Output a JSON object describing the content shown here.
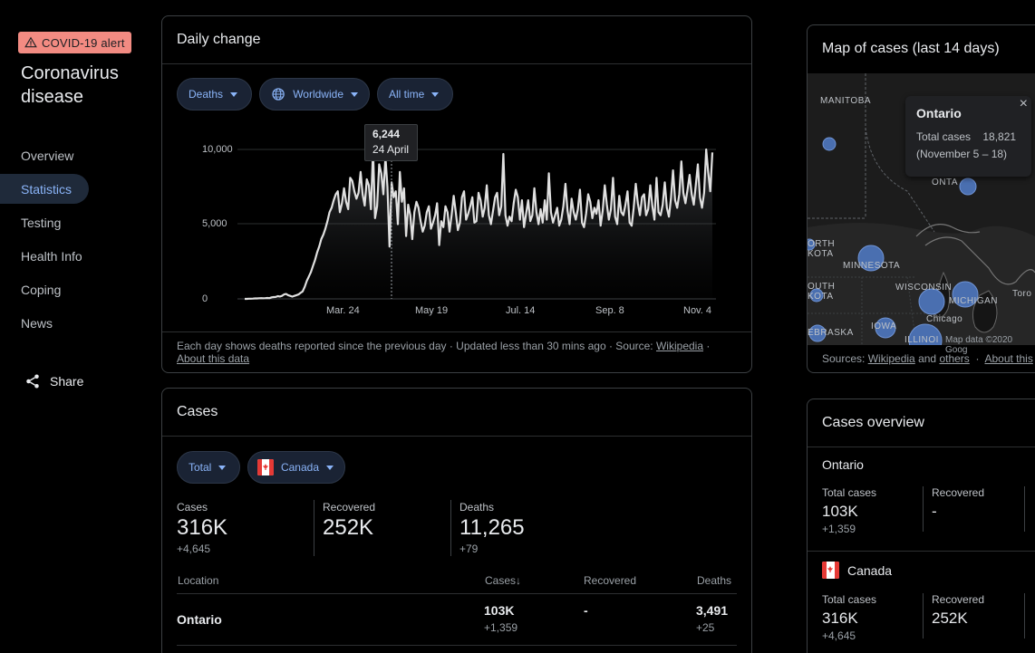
{
  "sidebar": {
    "alert": "COVID-19 alert",
    "title": "Coronavirus disease",
    "nav": [
      "Overview",
      "Statistics",
      "Testing",
      "Health Info",
      "Coping",
      "News"
    ],
    "active": "Statistics",
    "share": "Share"
  },
  "daily_change": {
    "title": "Daily change",
    "filters": {
      "metric": "Deaths",
      "region": "Worldwide",
      "range": "All time"
    },
    "tooltip": {
      "value": "6,244",
      "date": "24 April"
    },
    "footnote": "Each day shows deaths reported since the previous day · Updated less than 30 mins ago · Source:",
    "source_link": "Wikipedia",
    "about_link": "About this data",
    "chart_data": {
      "type": "area",
      "y_ticks": [
        "10,000",
        "5,000",
        "0"
      ],
      "x_ticks": [
        "Mar. 24",
        "May 19",
        "Jul. 14",
        "Sep. 8",
        "Nov. 4"
      ],
      "ylim": [
        0,
        10000
      ],
      "series": [
        {
          "values": [
            0,
            0,
            10,
            15,
            20,
            30,
            30,
            40,
            50,
            40,
            50,
            60,
            50,
            100,
            120,
            130,
            180,
            160,
            200,
            300,
            330,
            250,
            200,
            150,
            200,
            250,
            300,
            400,
            500,
            800,
            1200,
            1500,
            1800,
            2200,
            2600,
            3100,
            3500,
            4000,
            4300,
            4700,
            5200,
            5800,
            6100,
            6600,
            7000,
            7200,
            5800,
            6400,
            7400,
            6500,
            6000,
            8100,
            7900,
            7200,
            6700,
            7100,
            8500,
            7000,
            6244,
            8000,
            7600,
            6000,
            10000,
            5400,
            6200,
            9000,
            8400,
            7000,
            9500,
            7500,
            3500,
            7800,
            6800,
            7200,
            5000,
            8500,
            6500,
            7400,
            4200,
            6300,
            5600,
            4000,
            5800,
            6500,
            6100,
            5200,
            4500,
            4900,
            5800,
            6200,
            4700,
            5100,
            5600,
            6400,
            3600,
            5200,
            4800,
            6200,
            5800,
            4500,
            5600,
            6900,
            5800,
            4600,
            5100,
            6800,
            7200,
            5300,
            5700,
            6200,
            6800,
            5100,
            5200,
            7100,
            6600,
            5500,
            6100,
            7600,
            5600,
            5000,
            5900,
            6800,
            7100,
            5600,
            6200,
            9700,
            5600,
            4900,
            5500,
            5200,
            6400,
            7300,
            6800,
            5300,
            6600,
            4800,
            5700,
            6600,
            5200,
            5600,
            7400,
            5800,
            5000,
            6000,
            5100,
            6600,
            5300,
            8400,
            5800,
            5100,
            5600,
            6100,
            4900,
            5300,
            6200,
            7700,
            5900,
            5000,
            6700,
            5800,
            5300,
            6000,
            7300,
            5100,
            4800,
            5700,
            7000,
            6500,
            5400,
            6100,
            5700,
            6600,
            4900,
            5900,
            7600,
            6300,
            5300,
            6000,
            8100,
            5500,
            5000,
            6900,
            5800,
            5600,
            6300,
            7200,
            5100,
            4900,
            6100,
            7700,
            6400,
            5600,
            6800,
            7000,
            5600,
            6000,
            7600,
            6200,
            5300,
            8100,
            5800,
            5600,
            6300,
            7800,
            6100,
            5500,
            6700,
            8600,
            6600,
            6100,
            7000,
            9200,
            7100,
            6400,
            7300,
            8300,
            7000,
            6300,
            7600,
            9000,
            6800,
            6100,
            7100,
            10000,
            8500,
            7200,
            9800
          ]
        }
      ]
    }
  },
  "cases": {
    "title": "Cases",
    "filters": {
      "metric": "Total",
      "region": "Canada"
    },
    "stats": [
      {
        "label": "Cases",
        "value": "316K",
        "delta": "+4,645"
      },
      {
        "label": "Recovered",
        "value": "252K",
        "delta": ""
      },
      {
        "label": "Deaths",
        "value": "11,265",
        "delta": "+79"
      }
    ],
    "table": {
      "headers": [
        "Location",
        "Cases",
        "Recovered",
        "Deaths"
      ],
      "rows": [
        {
          "location": "Ontario",
          "cases": "103K",
          "cases_delta": "+1,359",
          "recovered": "-",
          "deaths": "3,491",
          "deaths_delta": "+25"
        }
      ]
    }
  },
  "map": {
    "title": "Map of cases (last 14 days)",
    "tooltip": {
      "title": "Ontario",
      "label": "Total cases",
      "value": "18,821",
      "period": "(November 5 – 18)"
    },
    "labels": [
      "MANITOBA",
      "ONTA",
      "ORTH",
      "KOTA",
      "MINNESOTA",
      "OUTH",
      "KOTA",
      "WISCONSIN",
      "MICHIGAN",
      "Toro",
      "Chicago",
      "IOWA",
      "EBRASKA",
      "ILLINOI",
      "Map data ©2020 Goog"
    ],
    "sources_prefix": "Sources:",
    "sources_link1": "Wikipedia",
    "sources_and": "and",
    "sources_link2": "others",
    "about_link": "About this"
  },
  "overview": {
    "title": "Cases overview",
    "ontario": {
      "name": "Ontario",
      "total_label": "Total cases",
      "total": "103K",
      "delta": "+1,359",
      "recovered_label": "Recovered",
      "recovered": "-"
    },
    "canada": {
      "name": "Canada",
      "total_label": "Total cases",
      "total": "316K",
      "delta": "+4,645",
      "recovered_label": "Recovered",
      "recovered": "252K"
    }
  },
  "colors": {
    "accent": "#8ab4f8",
    "alert": "#f28b82",
    "line": "#e0e0e0",
    "bubble": "#4a6fb0"
  }
}
